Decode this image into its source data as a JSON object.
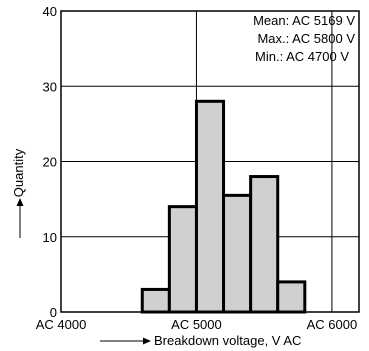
{
  "colors": {
    "bar_fill": "#d0d0d0",
    "bar_stroke": "#000000",
    "grid": "#000000",
    "background": "#ffffff"
  },
  "chart_data": {
    "type": "bar",
    "title": "",
    "xlabel": "Breakdown voltage, V AC",
    "ylabel": "Quantity",
    "x_range": [
      4000,
      6200
    ],
    "ylim": [
      0,
      40
    ],
    "x_ticks": [
      4000,
      5000,
      6000
    ],
    "x_tick_labels": [
      "AC 4000",
      "AC 5000",
      "AC 6000"
    ],
    "y_ticks": [
      0,
      10,
      20,
      30,
      40
    ],
    "y_tick_labels": [
      "0",
      "10",
      "20",
      "30",
      "40"
    ],
    "grid": true,
    "bin_width": 200,
    "bins": [
      {
        "start": 4600,
        "end": 4800,
        "value": 3
      },
      {
        "start": 4800,
        "end": 5000,
        "value": 14
      },
      {
        "start": 5000,
        "end": 5200,
        "value": 28
      },
      {
        "start": 5200,
        "end": 5400,
        "value": 15.5
      },
      {
        "start": 5400,
        "end": 5600,
        "value": 18
      },
      {
        "start": 5600,
        "end": 5800,
        "value": 4
      }
    ],
    "annotations": [
      "Mean: AC 5169 V",
      "Max.: AC 5800 V",
      "Min.: AC 4700 V"
    ]
  }
}
